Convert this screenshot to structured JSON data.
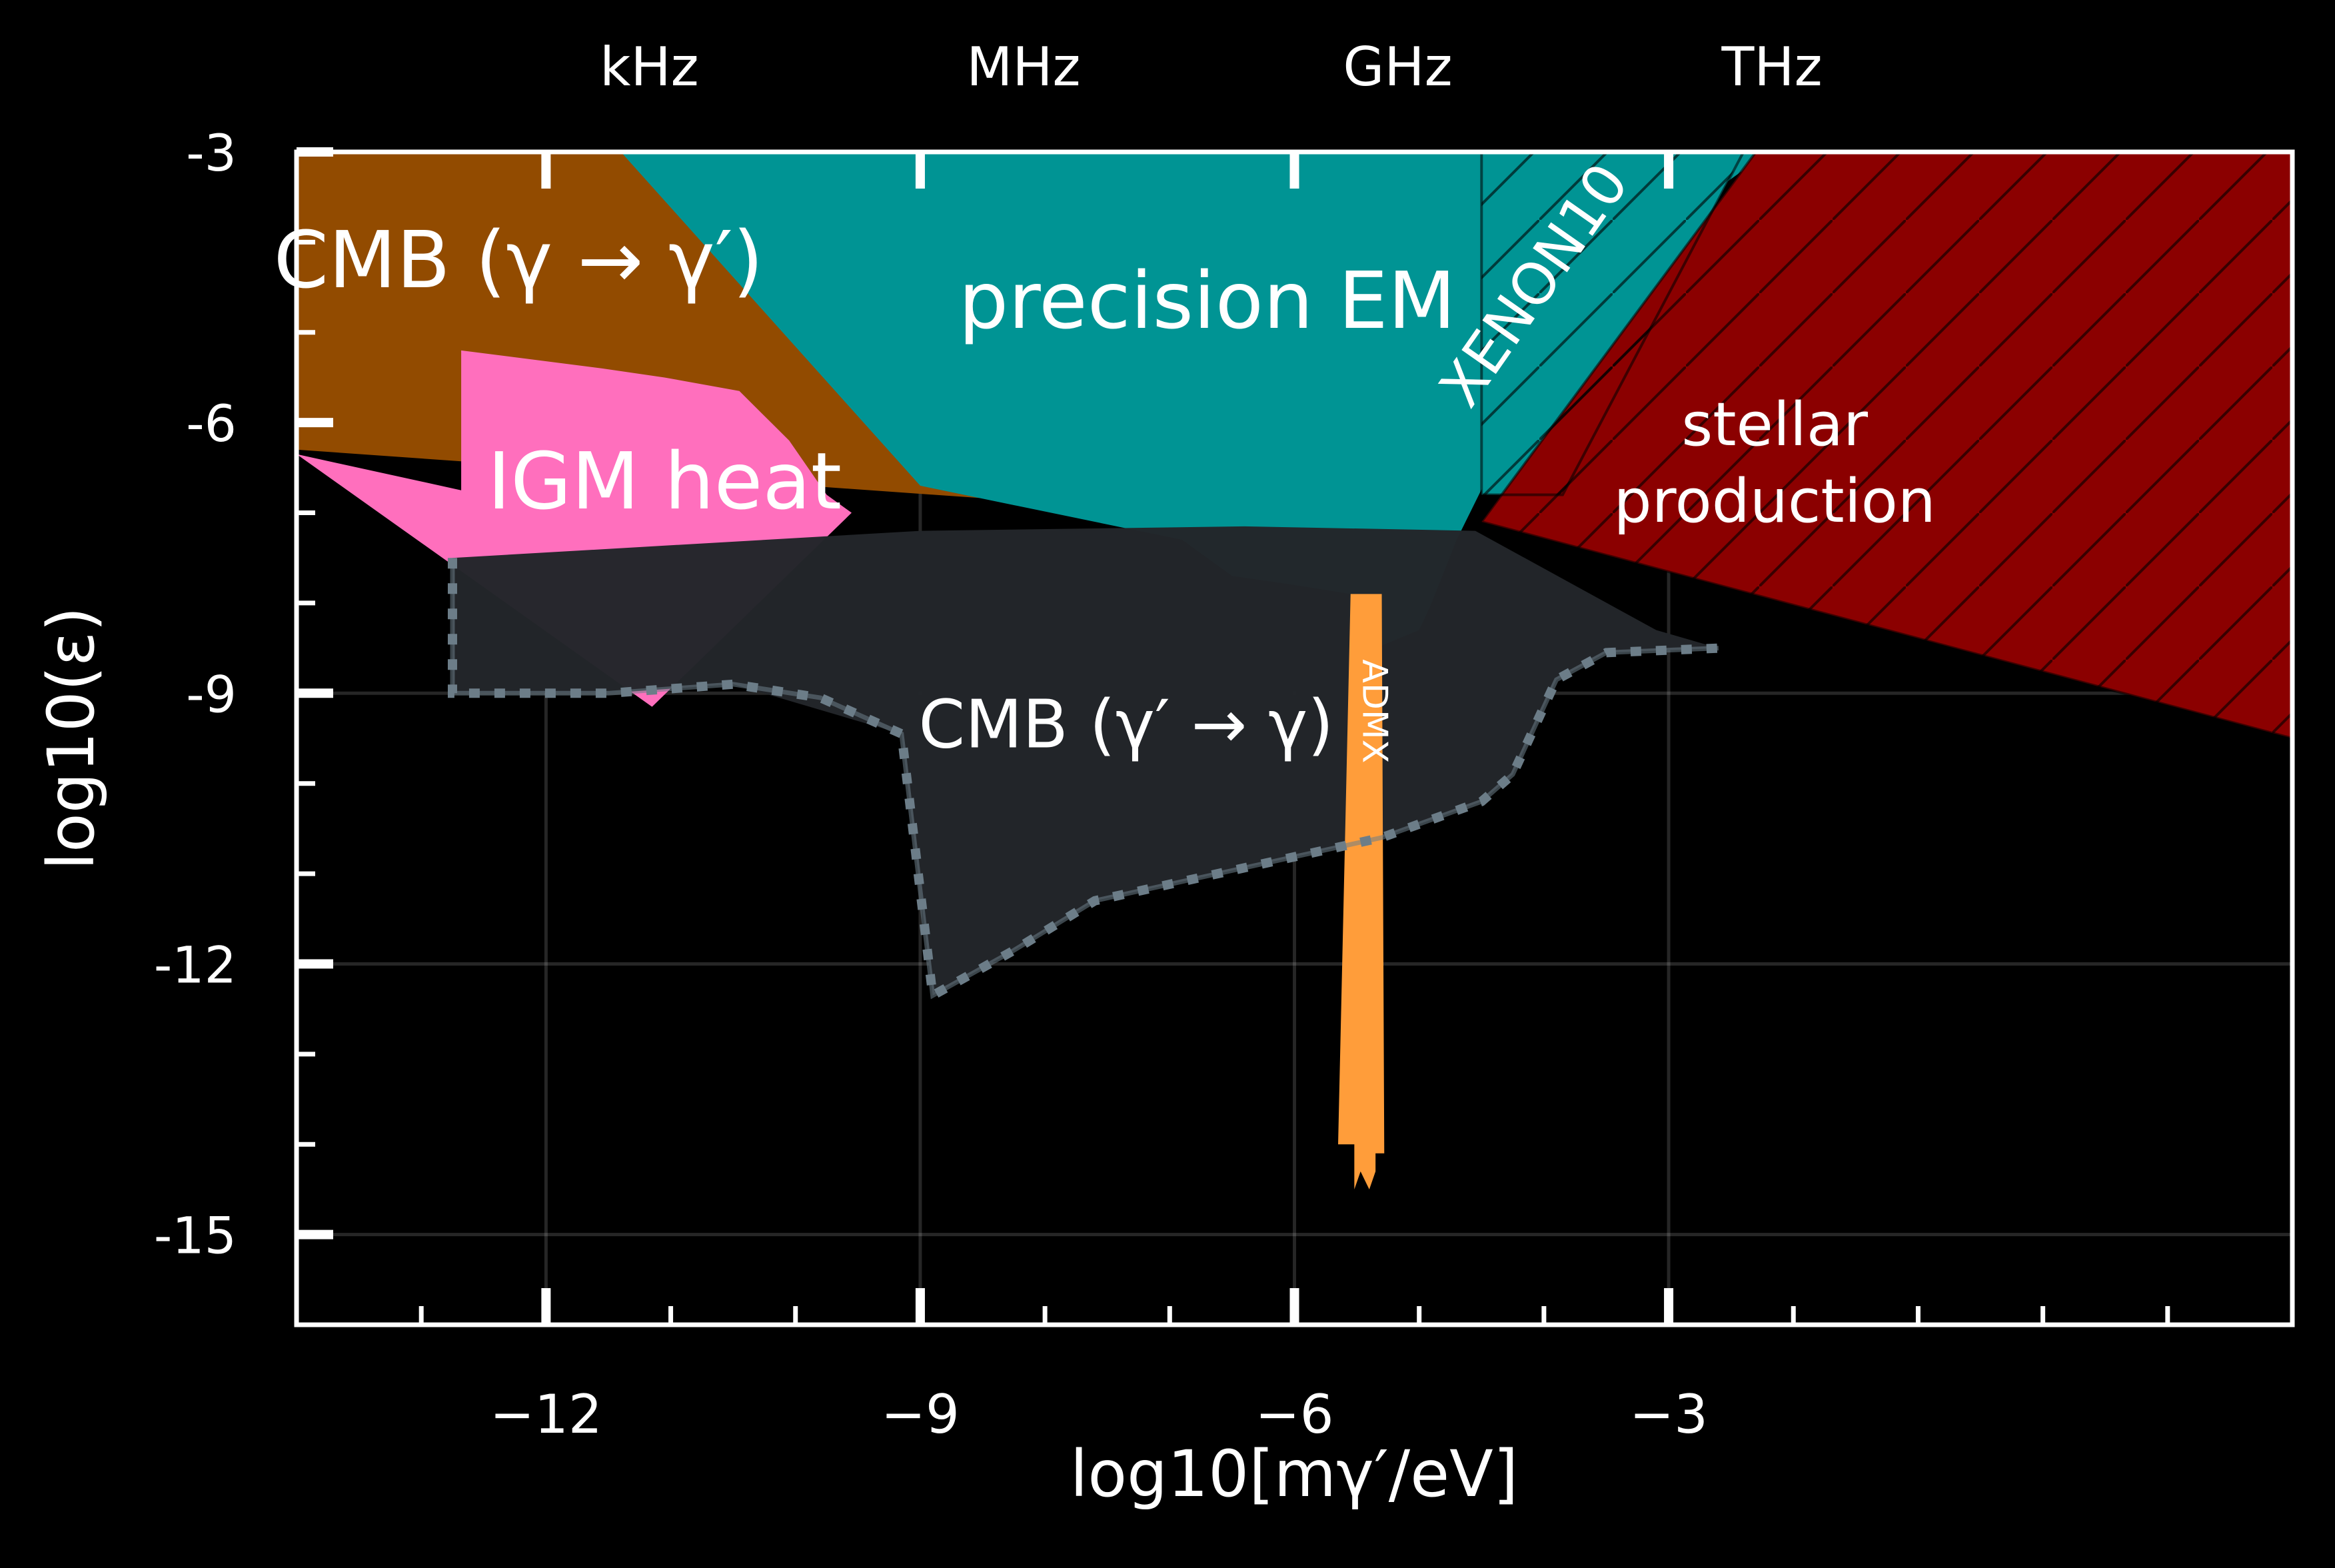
{
  "chart_data": {
    "type": "area",
    "title": "",
    "xlabel": "log10[mγ′/eV]",
    "ylabel": "log10(ε)",
    "xlim": [
      -14,
      2
    ],
    "ylim": [
      -16,
      -3
    ],
    "grid": true,
    "x_ticks": [
      -12,
      -9,
      -6,
      -3
    ],
    "x_tick_labels": [
      "−12",
      "−9",
      "−6",
      "−3"
    ],
    "y_ticks": [
      -3,
      -6,
      -9,
      -12,
      -15
    ],
    "y_tick_labels": [
      "-3",
      "-6",
      "-9",
      "-12",
      "-15"
    ],
    "top_axis": {
      "ticks": [
        -12,
        -9,
        -6,
        -3
      ],
      "labels": [
        "kHz",
        "MHz",
        "GHz",
        "THz"
      ]
    },
    "colors": {
      "background": "#000000",
      "axes": "#ffffff",
      "cmb_gamma_to_dp": "#924b00",
      "igm_heat": "#ff6fbd",
      "precision_em": "#009494",
      "xenon10": "#009494",
      "stellar": "#8b0000",
      "cmb_dp_to_gamma": "#23262a",
      "admx": "#ff9d3a",
      "projection_line": "#6c7d88",
      "label_text": "#ffffff"
    },
    "regions": [
      {
        "name": "CMB (γ → γ′)",
        "label": "CMB (γ → γ′)",
        "color": "#924b00",
        "x": [
          -14,
          -11.4,
          -7.6,
          -6.6,
          -5.6,
          -5.0,
          -4.8,
          -14
        ],
        "y": [
          -3,
          -3,
          -6.1,
          -7.1,
          -7.3,
          -7.3,
          -7.2,
          -6.3
        ]
      },
      {
        "name": "IGM heat",
        "label": "IGM heat",
        "color": "#ff6fbd",
        "x": [
          -14,
          -12.68,
          -12.68,
          -11.55,
          -11.05,
          -10.45,
          -10.05,
          -9.75,
          -9.55,
          -11.15,
          -14
        ],
        "y": [
          -6.35,
          -6.75,
          -5.2,
          -5.4,
          -5.5,
          -5.65,
          -6.2,
          -6.8,
          -7.0,
          -9.15,
          -6.35
        ]
      },
      {
        "name": "precision EM",
        "label": "precision EM",
        "color": "#009494",
        "x": [
          -11.4,
          -2.2,
          -3.9,
          -4.35,
          -4.45,
          -4.7,
          -4.9,
          -5.0,
          -5.35,
          -5.55,
          -6.0,
          -6.5,
          -6.9,
          -9.0
        ],
        "y": [
          -3,
          -3,
          -4.7,
          -5.7,
          -6.6,
          -7.3,
          -8.0,
          -8.3,
          -8.5,
          -7.9,
          -7.8,
          -7.7,
          -7.3,
          -6.7
        ]
      },
      {
        "name": "XENON10",
        "label": "XENON10",
        "color": "#009494",
        "x": [
          -4.5,
          -2.4,
          -3.85,
          -4.5
        ],
        "y": [
          -3,
          -3,
          -6.8,
          -6.8
        ]
      },
      {
        "name": "stellar production",
        "label": "stellar production",
        "label_lines": [
          "stellar",
          "production"
        ],
        "color": "#8b0000",
        "x": [
          -2.3,
          2,
          2,
          -4.5
        ],
        "y": [
          -3,
          -3,
          -9.5,
          -7.1
        ]
      },
      {
        "name": "CMB (γ′ → γ)",
        "label": "CMB (γ′ → γ)",
        "color": "#23262a",
        "x": [
          -12.75,
          -9.0,
          -6.4,
          -4.55,
          -3.1,
          -2.6,
          -3.5,
          -3.9,
          -4.25,
          -4.5,
          -5.3,
          -7.6,
          -8.25,
          -8.9,
          -9.15,
          -10.5,
          -11.5,
          -12.75
        ],
        "y": [
          -7.5,
          -7.2,
          -7.15,
          -7.2,
          -8.3,
          -8.5,
          -8.55,
          -8.85,
          -9.9,
          -10.2,
          -10.6,
          -11.3,
          -11.85,
          -12.35,
          -9.45,
          -8.9,
          -9.0,
          -9.0
        ]
      },
      {
        "name": "ADMX",
        "label": "ADMX",
        "color": "#ff9d3a",
        "x": [
          -5.55,
          -5.3,
          -5.28,
          -5.35,
          -5.35,
          -5.4,
          -5.47,
          -5.52,
          -5.52,
          -5.65
        ],
        "y": [
          -7.9,
          -7.9,
          -14.1,
          -14.1,
          -14.3,
          -14.5,
          -14.3,
          -14.5,
          -14.0,
          -14.0
        ]
      }
    ],
    "projection_line": {
      "name": "CMB (γ′ → γ) projection",
      "style": "dotted",
      "color": "#6c7d88",
      "x": [
        -12.75,
        -12.75,
        -11.5,
        -10.5,
        -9.8,
        -9.15,
        -8.9,
        -8.25,
        -7.6,
        -5.3,
        -4.5,
        -4.25,
        -3.9,
        -3.5,
        -2.6
      ],
      "y": [
        -7.5,
        -9.0,
        -9.0,
        -8.9,
        -9.05,
        -9.45,
        -12.35,
        -11.85,
        -11.3,
        -10.6,
        -10.2,
        -9.9,
        -8.85,
        -8.55,
        -8.5
      ]
    }
  }
}
